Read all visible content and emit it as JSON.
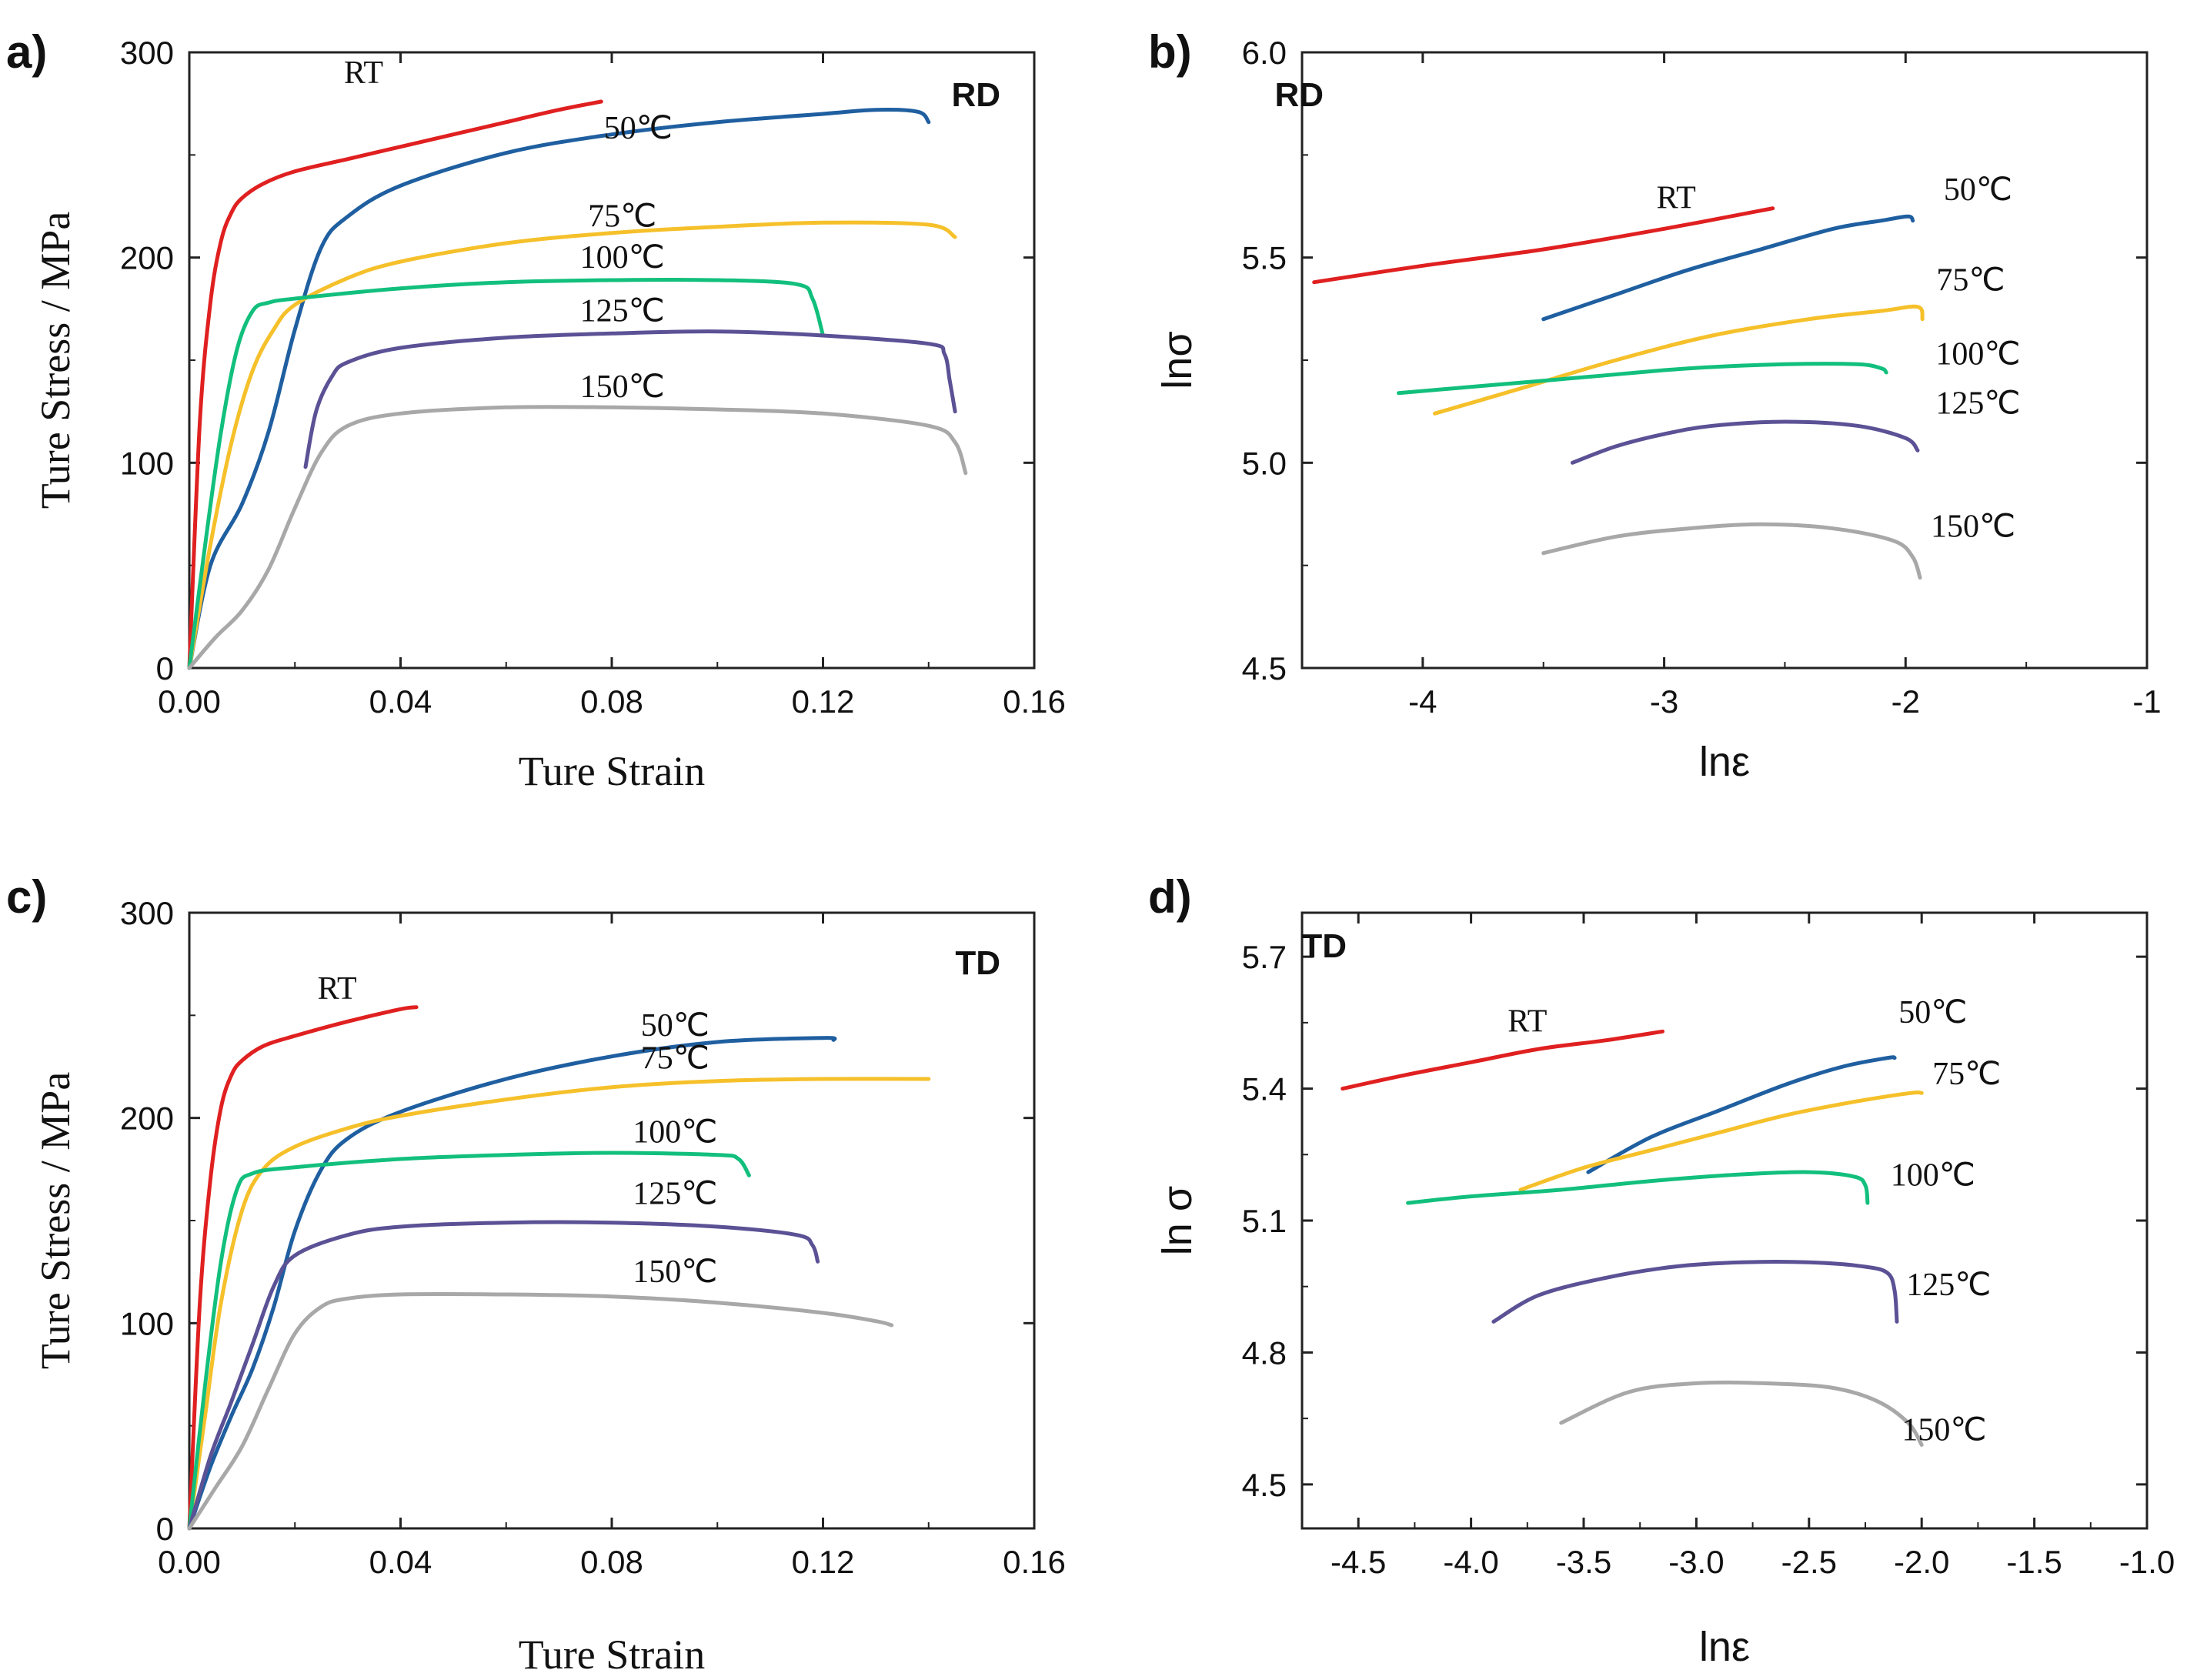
{
  "colors": {
    "RT": "#e02020",
    "50℃": "#1f5fa0",
    "75℃": "#f5c02a",
    "100℃": "#12bf7d",
    "125℃": "#5b5195",
    "150℃": "#a8a8a8",
    "axis": "#222222"
  },
  "chart_data": [
    {
      "id": "a",
      "panel_label": "a)",
      "direction": "RD",
      "type": "line",
      "xlabel": "Ture Strain",
      "ylabel": "Ture Stress / MPa",
      "xlim": [
        0,
        0.16
      ],
      "ylim": [
        0,
        300
      ],
      "xticks": [
        "0.00",
        "0.04",
        "0.08",
        "0.12",
        "0.16"
      ],
      "yticks": [
        "0",
        "100",
        "200",
        "300"
      ],
      "series": [
        {
          "name": "RT",
          "label": "RT",
          "x": [
            0,
            0.002,
            0.004,
            0.006,
            0.008,
            0.01,
            0.014,
            0.02,
            0.03,
            0.04,
            0.05,
            0.06,
            0.07,
            0.078
          ],
          "y": [
            0,
            120,
            178,
            208,
            222,
            229,
            236,
            242,
            248,
            254,
            260,
            266,
            272,
            276
          ]
        },
        {
          "name": "50℃",
          "label": "50℃",
          "x": [
            0,
            0.004,
            0.01,
            0.015,
            0.02,
            0.025,
            0.03,
            0.04,
            0.06,
            0.08,
            0.1,
            0.12,
            0.13,
            0.138,
            0.14
          ],
          "y": [
            0,
            50,
            80,
            115,
            165,
            205,
            220,
            235,
            251,
            260,
            266,
            270,
            272,
            271,
            266
          ]
        },
        {
          "name": "75℃",
          "label": "75℃",
          "x": [
            0,
            0.004,
            0.008,
            0.012,
            0.016,
            0.02,
            0.03,
            0.04,
            0.06,
            0.08,
            0.1,
            0.12,
            0.14,
            0.145
          ],
          "y": [
            0,
            60,
            110,
            145,
            165,
            177,
            190,
            198,
            207,
            212,
            215,
            217,
            216,
            210
          ]
        },
        {
          "name": "100℃",
          "label": "100℃",
          "x": [
            0,
            0.003,
            0.006,
            0.009,
            0.012,
            0.015,
            0.02,
            0.04,
            0.06,
            0.08,
            0.1,
            0.115,
            0.118,
            0.12
          ],
          "y": [
            0,
            60,
            115,
            155,
            174,
            178,
            180,
            185,
            188,
            189,
            189,
            187,
            180,
            162
          ]
        },
        {
          "name": "125℃",
          "label": "125℃",
          "x": [
            0.022,
            0.024,
            0.027,
            0.03,
            0.04,
            0.06,
            0.08,
            0.1,
            0.12,
            0.14,
            0.143,
            0.144,
            0.145
          ],
          "y": [
            98,
            125,
            142,
            149,
            156,
            161,
            163,
            164,
            162,
            158,
            153,
            140,
            125
          ]
        },
        {
          "name": "150℃",
          "label": "150℃",
          "x": [
            0,
            0.005,
            0.01,
            0.015,
            0.02,
            0.025,
            0.03,
            0.04,
            0.06,
            0.08,
            0.1,
            0.12,
            0.14,
            0.145,
            0.147
          ],
          "y": [
            0,
            15,
            28,
            48,
            78,
            105,
            118,
            124,
            127,
            127,
            126,
            124,
            118,
            110,
            95
          ]
        }
      ]
    },
    {
      "id": "b",
      "panel_label": "b)",
      "direction": "RD",
      "type": "line",
      "xlabel": "lnε",
      "ylabel": "lnσ",
      "xlim": [
        -4.5,
        -1
      ],
      "ylim": [
        4.5,
        6
      ],
      "xticks": [
        "-4",
        "-3",
        "-2",
        "-1"
      ],
      "yticks": [
        "4.5",
        "5.0",
        "5.5",
        "6.0"
      ],
      "series": [
        {
          "name": "RT",
          "label": "RT",
          "x": [
            -4.45,
            -4.0,
            -3.5,
            -3.0,
            -2.55
          ],
          "y": [
            5.44,
            5.48,
            5.52,
            5.57,
            5.62
          ]
        },
        {
          "name": "50℃",
          "label": "50℃",
          "x": [
            -3.5,
            -3.2,
            -2.9,
            -2.6,
            -2.3,
            -2.1,
            -1.99,
            -1.97
          ],
          "y": [
            5.35,
            5.41,
            5.47,
            5.52,
            5.57,
            5.59,
            5.6,
            5.59
          ]
        },
        {
          "name": "75℃",
          "label": "75℃",
          "x": [
            -3.95,
            -3.6,
            -3.2,
            -2.8,
            -2.4,
            -2.1,
            -1.95,
            -1.93
          ],
          "y": [
            5.12,
            5.18,
            5.25,
            5.31,
            5.35,
            5.37,
            5.38,
            5.35
          ]
        },
        {
          "name": "100℃",
          "label": "100℃",
          "x": [
            -4.1,
            -3.7,
            -3.3,
            -2.9,
            -2.5,
            -2.2,
            -2.1,
            -2.08
          ],
          "y": [
            5.17,
            5.19,
            5.21,
            5.23,
            5.24,
            5.24,
            5.23,
            5.22
          ]
        },
        {
          "name": "125℃",
          "label": "125℃",
          "x": [
            -3.38,
            -3.2,
            -3.0,
            -2.8,
            -2.5,
            -2.2,
            -2.0,
            -1.95
          ],
          "y": [
            5.0,
            5.04,
            5.07,
            5.09,
            5.1,
            5.09,
            5.06,
            5.03
          ]
        },
        {
          "name": "150℃",
          "label": "150℃",
          "x": [
            -3.5,
            -3.2,
            -2.9,
            -2.6,
            -2.3,
            -2.05,
            -1.97,
            -1.94
          ],
          "y": [
            4.78,
            4.82,
            4.84,
            4.85,
            4.84,
            4.81,
            4.77,
            4.72
          ]
        }
      ]
    },
    {
      "id": "c",
      "panel_label": "c)",
      "direction": "TD",
      "type": "line",
      "xlabel": "Ture Strain",
      "ylabel": "Ture Stress / MPa",
      "xlim": [
        0,
        0.16
      ],
      "ylim": [
        0,
        300
      ],
      "xticks": [
        "0.00",
        "0.04",
        "0.08",
        "0.12",
        "0.16"
      ],
      "yticks": [
        "0",
        "100",
        "200",
        "300"
      ],
      "series": [
        {
          "name": "RT",
          "label": "RT",
          "x": [
            0,
            0.002,
            0.004,
            0.006,
            0.008,
            0.01,
            0.014,
            0.02,
            0.03,
            0.04,
            0.043
          ],
          "y": [
            0,
            110,
            170,
            205,
            221,
            228,
            235,
            240,
            247,
            253,
            254
          ]
        },
        {
          "name": "50℃",
          "label": "50℃",
          "x": [
            0,
            0.004,
            0.008,
            0.012,
            0.016,
            0.02,
            0.025,
            0.03,
            0.04,
            0.06,
            0.08,
            0.1,
            0.12,
            0.122
          ],
          "y": [
            0,
            30,
            55,
            78,
            108,
            145,
            175,
            190,
            203,
            219,
            230,
            237,
            239,
            238
          ]
        },
        {
          "name": "75℃",
          "label": "75℃",
          "x": [
            0,
            0.003,
            0.006,
            0.01,
            0.014,
            0.02,
            0.03,
            0.04,
            0.06,
            0.08,
            0.1,
            0.12,
            0.14
          ],
          "y": [
            0,
            55,
            110,
            155,
            175,
            186,
            195,
            201,
            209,
            215,
            218,
            219,
            219
          ]
        },
        {
          "name": "100℃",
          "label": "100℃",
          "x": [
            0,
            0.003,
            0.006,
            0.009,
            0.012,
            0.02,
            0.04,
            0.06,
            0.08,
            0.1,
            0.104,
            0.106
          ],
          "y": [
            0,
            70,
            130,
            165,
            173,
            176,
            180,
            182,
            183,
            182,
            180,
            172
          ]
        },
        {
          "name": "125℃",
          "label": "125℃",
          "x": [
            0,
            0.004,
            0.008,
            0.012,
            0.016,
            0.02,
            0.03,
            0.04,
            0.06,
            0.08,
            0.1,
            0.115,
            0.118,
            0.119
          ],
          "y": [
            0,
            35,
            62,
            90,
            118,
            133,
            143,
            147,
            149,
            149,
            147,
            143,
            138,
            130
          ]
        },
        {
          "name": "150℃",
          "label": "150℃",
          "x": [
            0,
            0.005,
            0.01,
            0.015,
            0.02,
            0.025,
            0.03,
            0.04,
            0.06,
            0.08,
            0.1,
            0.12,
            0.13,
            0.133
          ],
          "y": [
            0,
            20,
            40,
            68,
            95,
            108,
            112,
            114,
            114,
            113,
            110,
            105,
            101,
            99
          ]
        }
      ]
    },
    {
      "id": "d",
      "panel_label": "d)",
      "direction": "TD",
      "type": "line",
      "xlabel": "lnε",
      "ylabel": "ln σ",
      "xlim": [
        -4.75,
        -1.0
      ],
      "ylim": [
        4.4,
        5.8
      ],
      "xticks": [
        "-4.5",
        "-4.0",
        "-3.5",
        "-3.0",
        "-2.5",
        "-2.0",
        "-1.5",
        "-1.0"
      ],
      "yticks": [
        "4.5",
        "4.8",
        "5.1",
        "5.4",
        "5.7"
      ],
      "series": [
        {
          "name": "RT",
          "label": "RT",
          "x": [
            -4.57,
            -4.3,
            -4.0,
            -3.7,
            -3.4,
            -3.15
          ],
          "y": [
            5.4,
            5.43,
            5.46,
            5.49,
            5.51,
            5.53
          ]
        },
        {
          "name": "50℃",
          "label": "50℃",
          "x": [
            -3.48,
            -3.2,
            -2.9,
            -2.6,
            -2.35,
            -2.15,
            -2.12
          ],
          "y": [
            5.21,
            5.29,
            5.35,
            5.41,
            5.45,
            5.47,
            5.47
          ]
        },
        {
          "name": "75℃",
          "label": "75℃",
          "x": [
            -3.78,
            -3.5,
            -3.2,
            -2.9,
            -2.6,
            -2.3,
            -2.05,
            -2.0
          ],
          "y": [
            5.17,
            5.22,
            5.26,
            5.3,
            5.34,
            5.37,
            5.39,
            5.39
          ]
        },
        {
          "name": "100℃",
          "label": "100℃",
          "x": [
            -4.28,
            -4.0,
            -3.6,
            -3.2,
            -2.8,
            -2.5,
            -2.3,
            -2.25,
            -2.24
          ],
          "y": [
            5.14,
            5.155,
            5.17,
            5.19,
            5.205,
            5.21,
            5.2,
            5.18,
            5.14
          ]
        },
        {
          "name": "125℃",
          "label": "125℃",
          "x": [
            -3.9,
            -3.7,
            -3.4,
            -3.1,
            -2.8,
            -2.5,
            -2.25,
            -2.15,
            -2.12,
            -2.11
          ],
          "y": [
            4.87,
            4.93,
            4.97,
            4.995,
            5.005,
            5.005,
            4.995,
            4.98,
            4.94,
            4.87
          ]
        },
        {
          "name": "150℃",
          "label": "150℃",
          "x": [
            -3.6,
            -3.3,
            -3.0,
            -2.7,
            -2.4,
            -2.2,
            -2.06,
            -2.0
          ],
          "y": [
            4.64,
            4.71,
            4.73,
            4.73,
            4.72,
            4.69,
            4.64,
            4.59
          ]
        }
      ]
    }
  ]
}
